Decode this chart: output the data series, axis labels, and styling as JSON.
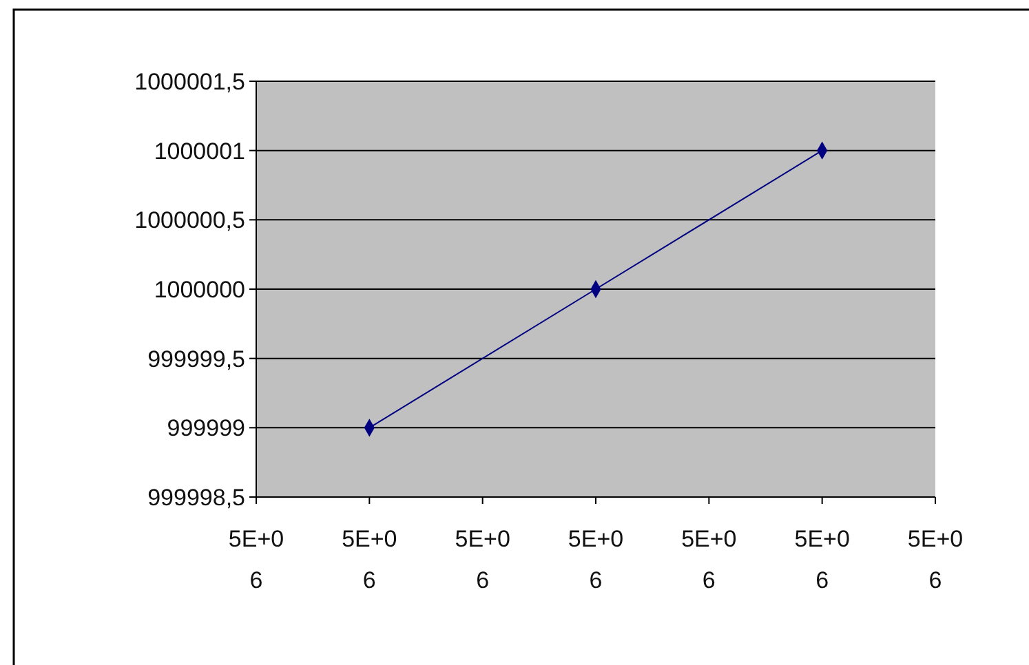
{
  "chart_data": {
    "type": "line",
    "x": [
      4999999,
      5000000,
      5000001
    ],
    "series": [
      {
        "color": "#000080",
        "values": [
          999999,
          1000000,
          1000001
        ]
      }
    ],
    "xlim": [
      4999998.5,
      5000001.5
    ],
    "xticks": [
      {
        "value": 4999998.5,
        "label": "5E+06"
      },
      {
        "value": 4999999,
        "label": "5E+06"
      },
      {
        "value": 4999999.5,
        "label": "5E+06"
      },
      {
        "value": 5000000,
        "label": "5E+06"
      },
      {
        "value": 5000000.5,
        "label": "5E+06"
      },
      {
        "value": 5000001,
        "label": "5E+06"
      },
      {
        "value": 5000001.5,
        "label": "5E+06"
      }
    ],
    "ylim": [
      999998.5,
      1000001.5
    ],
    "yticks": [
      {
        "value": 999998.5,
        "label": "999998,5"
      },
      999999,
      {
        "value": 999999.5,
        "label": "999999,5"
      },
      1000000,
      {
        "value": 1000000.5,
        "label": "1000000,5"
      },
      1000001,
      {
        "value": 1000001.5,
        "label": "1000001,5"
      }
    ],
    "grid": "y",
    "marker": "diamond",
    "line_style": "solid"
  }
}
